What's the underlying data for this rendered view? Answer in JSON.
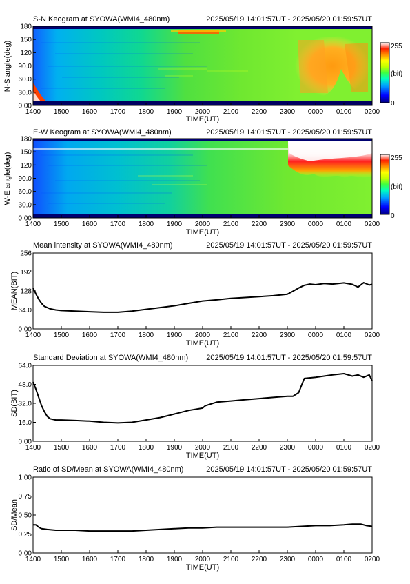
{
  "colors": {
    "line": "#000000",
    "colorbar": [
      "#000080",
      "#0000ff",
      "#00a0ff",
      "#00ffc0",
      "#40ff40",
      "#c0ff00",
      "#ffff00",
      "#ff9000",
      "#ff2000",
      "#ffffff"
    ]
  },
  "x_ticks": [
    "1400",
    "1500",
    "1600",
    "1700",
    "1800",
    "1900",
    "2000",
    "2100",
    "2200",
    "2300",
    "0000",
    "0100",
    "0200"
  ],
  "time_range": "2025/05/19 14:01:57UT - 2025/05/20 01:59:57UT",
  "xlabel": "TIME(UT)",
  "keograms": [
    {
      "title": "S-N Keogram at SYOWA(WMI4_480nm)",
      "time_range": "2025/05/19 14:01:57UT - 2025/05/20 01:59:57UT",
      "ylabel": "N-S angle(deg)",
      "yticks": [
        "0.00",
        "30.0",
        "60.0",
        "90.0",
        "120",
        "150",
        "180"
      ],
      "xlabel": "TIME(UT)",
      "cbar": {
        "max": "255",
        "unit": "(bit)",
        "min": "0"
      }
    },
    {
      "title": "E-W Keogram at SYOWA(WMI4_480nm)",
      "time_range": "2025/05/19 14:01:57UT - 2025/05/20 01:59:57UT",
      "ylabel": "W-E angle(deg)",
      "yticks": [
        "0.00",
        "30.0",
        "60.0",
        "90.0",
        "120",
        "150",
        "180"
      ],
      "xlabel": "TIME(UT)",
      "cbar": {
        "max": "255",
        "unit": "(bit)",
        "min": "0"
      }
    }
  ],
  "chart_data": [
    {
      "type": "line",
      "title": "Mean intensity at SYOWA(WMI4_480nm)",
      "time_range": "2025/05/19 14:01:57UT - 2025/05/20 01:59:57UT",
      "xlabel": "TIME(UT)",
      "ylabel": "MEAN(BIT)",
      "xlim": [
        14.0,
        26.0
      ],
      "ylim": [
        0,
        256
      ],
      "yticks": [
        "0.00",
        "64.0",
        "128",
        "192",
        "256"
      ],
      "x": [
        14.0,
        14.1,
        14.2,
        14.3,
        14.4,
        14.6,
        14.8,
        15.0,
        15.5,
        16.0,
        16.5,
        17.0,
        17.5,
        18.0,
        18.5,
        19.0,
        19.5,
        20.0,
        20.5,
        21.0,
        21.5,
        22.0,
        22.5,
        23.0,
        23.2,
        23.4,
        23.6,
        23.8,
        24.0,
        24.3,
        24.6,
        25.0,
        25.3,
        25.5,
        25.7,
        25.9,
        26.0
      ],
      "y": [
        138,
        118,
        100,
        86,
        76,
        68,
        64,
        62,
        60,
        58,
        56,
        56,
        60,
        66,
        72,
        78,
        86,
        94,
        98,
        103,
        106,
        109,
        112,
        117,
        127,
        138,
        147,
        151,
        149,
        153,
        151,
        155,
        150,
        141,
        156,
        148,
        150
      ]
    },
    {
      "type": "line",
      "title": "Standard Deviation at SYOWA(WMI4_480nm)",
      "time_range": "2025/05/19 14:01:57UT - 2025/05/20 01:59:57UT",
      "xlabel": "TIME(UT)",
      "ylabel": "SD(BIT)",
      "xlim": [
        14.0,
        26.0
      ],
      "ylim": [
        0,
        64
      ],
      "yticks": [
        "0.00",
        "16.0",
        "32.0",
        "48.0",
        "64.0"
      ],
      "x": [
        14.0,
        14.1,
        14.2,
        14.3,
        14.4,
        14.5,
        14.6,
        14.8,
        15.0,
        15.5,
        16.0,
        16.5,
        17.0,
        17.5,
        18.0,
        18.5,
        19.0,
        19.5,
        20.0,
        20.1,
        20.5,
        21.0,
        21.5,
        22.0,
        22.5,
        23.0,
        23.2,
        23.4,
        23.6,
        24.0,
        24.3,
        24.6,
        25.0,
        25.3,
        25.5,
        25.7,
        25.9,
        26.0
      ],
      "y": [
        50,
        44,
        37,
        30,
        25,
        21,
        19,
        18,
        18,
        17.5,
        17,
        16,
        15.5,
        16,
        18,
        20,
        23,
        26,
        28,
        30,
        33,
        34,
        35,
        36,
        37,
        38,
        38,
        41,
        53,
        54,
        55,
        56,
        57,
        55,
        56,
        54,
        56,
        51
      ]
    },
    {
      "type": "line",
      "title": "Ratio of SD/Mean at SYOWA(WMI4_480nm)",
      "time_range": "2025/05/19 14:01:57UT - 2025/05/20 01:59:57UT",
      "xlabel": "TIME(UT)",
      "ylabel": "SD/Mean",
      "xlim": [
        14.0,
        26.0
      ],
      "ylim": [
        0,
        1
      ],
      "yticks": [
        "0.00",
        "0.25",
        "0.50",
        "0.75",
        "1.00"
      ],
      "x": [
        14.0,
        14.1,
        14.2,
        14.3,
        14.5,
        14.8,
        15.0,
        15.5,
        16.0,
        16.5,
        17.0,
        17.5,
        18.0,
        18.5,
        19.0,
        19.5,
        20.0,
        20.5,
        21.0,
        22.0,
        23.0,
        23.5,
        24.0,
        24.5,
        25.0,
        25.3,
        25.6,
        25.8,
        26.0
      ],
      "y": [
        0.37,
        0.37,
        0.34,
        0.32,
        0.31,
        0.3,
        0.3,
        0.3,
        0.29,
        0.29,
        0.29,
        0.29,
        0.3,
        0.31,
        0.32,
        0.33,
        0.33,
        0.34,
        0.34,
        0.34,
        0.34,
        0.35,
        0.36,
        0.36,
        0.37,
        0.38,
        0.38,
        0.36,
        0.35
      ]
    }
  ]
}
